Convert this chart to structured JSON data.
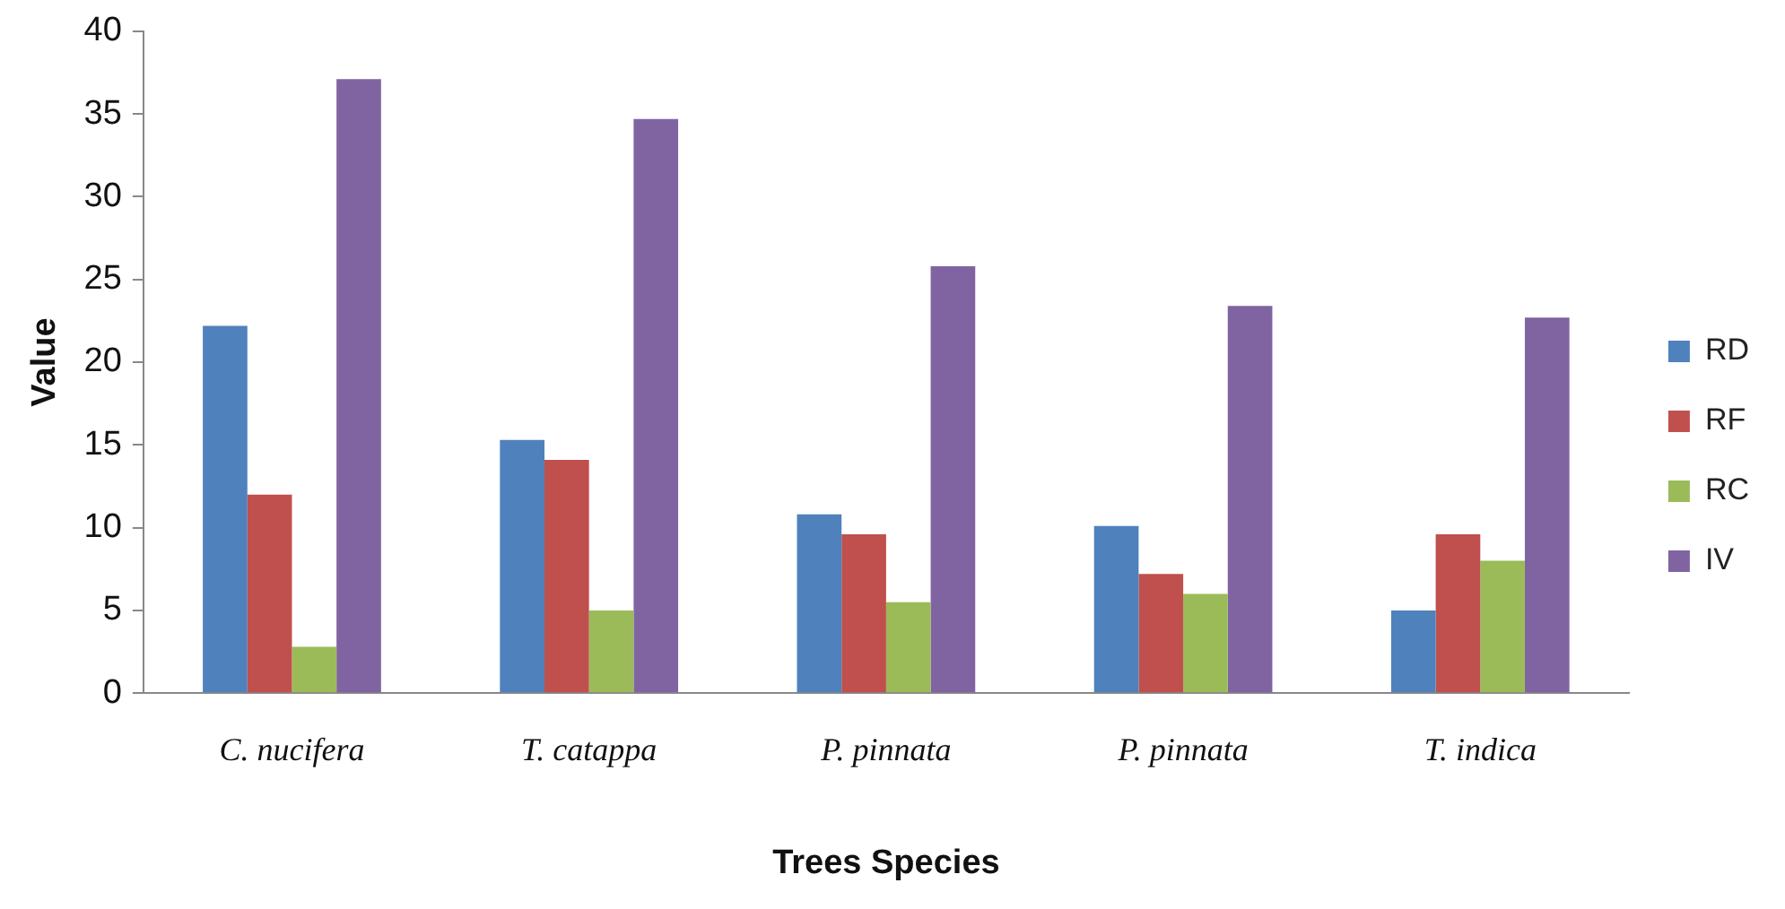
{
  "chart_data": {
    "type": "bar",
    "xlabel": "Trees Species",
    "ylabel": "Value",
    "categories": [
      "C. nucifera",
      "T. catappa",
      "P. pinnata",
      "P. pinnata",
      "T. indica"
    ],
    "series": [
      {
        "name": "RD",
        "color": "#4f81bd",
        "values": [
          22.2,
          15.3,
          10.8,
          10.1,
          5.0
        ]
      },
      {
        "name": "RF",
        "color": "#c0504d",
        "values": [
          12.0,
          14.1,
          9.6,
          7.2,
          9.6
        ]
      },
      {
        "name": "RC",
        "color": "#9bbb59",
        "values": [
          2.8,
          5.0,
          5.5,
          6.0,
          8.0
        ]
      },
      {
        "name": "IV",
        "color": "#8064a2",
        "values": [
          37.1,
          34.7,
          25.8,
          23.4,
          22.7
        ]
      }
    ],
    "ylim": [
      0,
      40
    ],
    "yticks": [
      0,
      5,
      10,
      15,
      20,
      25,
      30,
      35,
      40
    ],
    "grid": false,
    "legend": "right"
  }
}
